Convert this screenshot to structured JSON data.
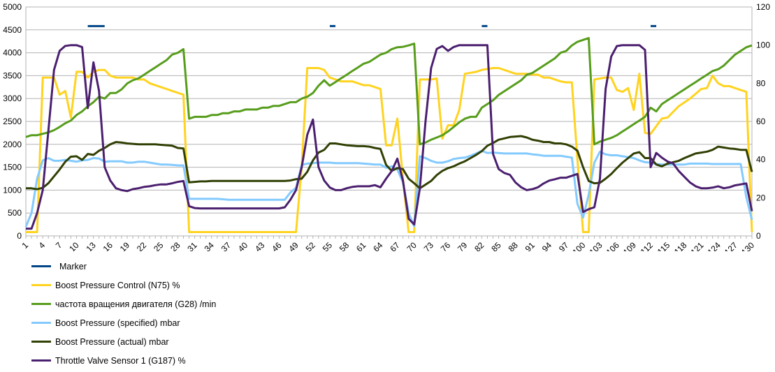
{
  "chart_data": {
    "type": "line",
    "title": "",
    "xlabel": "",
    "ylabel": "",
    "x": "1..130",
    "x_tick_labels_every": 3,
    "ylim_left": [
      0,
      5000
    ],
    "ylim_right": [
      0,
      120
    ],
    "yticks_left": [
      0,
      500,
      1000,
      1500,
      2000,
      2500,
      3000,
      3500,
      4000,
      4500,
      5000
    ],
    "yticks_right": [
      0,
      20,
      40,
      60,
      80,
      100,
      120
    ],
    "grid": "horizontal",
    "legend_placement": "bottom-left",
    "series": [
      {
        "name": "Marker",
        "axis": "right",
        "color": "#004586",
        "segments": [
          [
            12,
            15
          ],
          [
            55,
            56
          ],
          [
            82,
            83
          ],
          [
            112,
            113
          ]
        ],
        "value": 110
      },
      {
        "name": "Boost Pressure Control (N75)  %",
        "axis": "right",
        "color": "#ffd320",
        "values": [
          2,
          2,
          2,
          83,
          83,
          83,
          74,
          76,
          62,
          86,
          86,
          83,
          86,
          87,
          87,
          84,
          83,
          83,
          83,
          83,
          82,
          82,
          80,
          79,
          78,
          77,
          76,
          75,
          74,
          2,
          2,
          2,
          2,
          2,
          2,
          2,
          2,
          2,
          2,
          2,
          2,
          2,
          2,
          2,
          2,
          2,
          2,
          2,
          2,
          36,
          88,
          88,
          88,
          87,
          83,
          82,
          81,
          81,
          81,
          80,
          79,
          79,
          78,
          77,
          47.5,
          47.5,
          61.5,
          30,
          2,
          2,
          82,
          82,
          82,
          82.5,
          51,
          58,
          58,
          66,
          85,
          85.5,
          86,
          87,
          87.5,
          88,
          88,
          87,
          86,
          85,
          85,
          85,
          84.5,
          84.5,
          83,
          83,
          82,
          81,
          80.5,
          80.5,
          40,
          2,
          2,
          82,
          82.5,
          83,
          83,
          76.5,
          75.5,
          77.5,
          66,
          85,
          54,
          53.5,
          57.5,
          61.5,
          62,
          65,
          68,
          70,
          72,
          74.5,
          77,
          77.5,
          84,
          80,
          78.5,
          78.5,
          77.5,
          76.5,
          75.5,
          2
        ]
      },
      {
        "name": "частота вращения двигателя (G28)  /min",
        "axis": "left",
        "color": "#579d1c",
        "values": [
          2160,
          2200,
          2200,
          2230,
          2260,
          2310,
          2380,
          2460,
          2520,
          2640,
          2720,
          2830,
          2920,
          3040,
          3000,
          3120,
          3120,
          3200,
          3330,
          3400,
          3440,
          3520,
          3600,
          3680,
          3760,
          3840,
          3960,
          4000,
          4080,
          2560,
          2600,
          2600,
          2600,
          2640,
          2640,
          2680,
          2680,
          2720,
          2720,
          2760,
          2760,
          2760,
          2800,
          2800,
          2840,
          2840,
          2880,
          2920,
          2920,
          3000,
          3040,
          3120,
          3280,
          3400,
          3280,
          3360,
          3440,
          3520,
          3600,
          3680,
          3760,
          3800,
          3880,
          3960,
          4000,
          4080,
          4120,
          4130,
          4160,
          4200,
          2000,
          2040,
          2100,
          2150,
          2200,
          2280,
          2380,
          2480,
          2560,
          2600,
          2600,
          2800,
          2880,
          2960,
          3080,
          3160,
          3240,
          3320,
          3400,
          3520,
          3560,
          3640,
          3720,
          3800,
          3880,
          4000,
          4040,
          4160,
          4240,
          4280,
          4320,
          2000,
          2060,
          2100,
          2140,
          2200,
          2280,
          2360,
          2440,
          2520,
          2600,
          2800,
          2720,
          2880,
          2960,
          3040,
          3120,
          3200,
          3280,
          3360,
          3440,
          3520,
          3600,
          3640,
          3720,
          3840,
          3960,
          4040,
          4120,
          4160
        ]
      },
      {
        "name": "Boost Pressure (specified)  mbar",
        "axis": "left",
        "color": "#83caff",
        "values": [
          200,
          500,
          1250,
          1650,
          1700,
          1640,
          1640,
          1660,
          1640,
          1620,
          1650,
          1660,
          1700,
          1690,
          1620,
          1630,
          1630,
          1630,
          1600,
          1600,
          1620,
          1620,
          1600,
          1580,
          1560,
          1560,
          1550,
          1540,
          1540,
          810,
          810,
          810,
          810,
          810,
          810,
          800,
          790,
          790,
          790,
          790,
          790,
          790,
          790,
          790,
          790,
          790,
          790,
          950,
          1050,
          1550,
          1580,
          1590,
          1600,
          1600,
          1600,
          1590,
          1590,
          1590,
          1590,
          1590,
          1580,
          1570,
          1560,
          1560,
          1490,
          1520,
          1450,
          1170,
          500,
          210,
          1740,
          1700,
          1640,
          1600,
          1600,
          1630,
          1680,
          1700,
          1710,
          1750,
          1800,
          1860,
          1810,
          1820,
          1810,
          1800,
          1800,
          1800,
          1800,
          1800,
          1780,
          1770,
          1750,
          1750,
          1750,
          1750,
          1730,
          1710,
          700,
          400,
          900,
          1600,
          1840,
          1780,
          1760,
          1760,
          1740,
          1720,
          1700,
          1650,
          1610,
          1600,
          1570,
          1560,
          1560,
          1560,
          1560,
          1560,
          1580,
          1580,
          1580,
          1580,
          1570,
          1570,
          1570,
          1570,
          1570,
          1570,
          850,
          350
        ]
      },
      {
        "name": "Boost Pressure (actual)  mbar",
        "axis": "left",
        "color": "#314004",
        "values": [
          1040,
          1040,
          1020,
          1050,
          1150,
          1300,
          1450,
          1620,
          1730,
          1740,
          1660,
          1790,
          1770,
          1860,
          1920,
          2000,
          2050,
          2040,
          2020,
          2010,
          2000,
          2000,
          2000,
          2000,
          1990,
          1980,
          1970,
          1920,
          1910,
          1170,
          1180,
          1190,
          1190,
          1200,
          1200,
          1200,
          1200,
          1200,
          1200,
          1200,
          1200,
          1200,
          1200,
          1200,
          1200,
          1200,
          1200,
          1210,
          1240,
          1250,
          1400,
          1650,
          1820,
          1880,
          2020,
          2020,
          2000,
          1980,
          1970,
          1960,
          1960,
          1950,
          1920,
          1900,
          1550,
          1420,
          1480,
          1460,
          1250,
          1150,
          1040,
          1120,
          1200,
          1330,
          1420,
          1480,
          1520,
          1580,
          1630,
          1700,
          1770,
          1850,
          1970,
          2030,
          2100,
          2130,
          2160,
          2170,
          2180,
          2150,
          2100,
          2080,
          2050,
          2050,
          2020,
          2020,
          2000,
          1950,
          1860,
          1500,
          1200,
          1150,
          1160,
          1250,
          1350,
          1480,
          1600,
          1700,
          1800,
          1830,
          1700,
          1700,
          1560,
          1520,
          1580,
          1610,
          1640,
          1700,
          1750,
          1800,
          1820,
          1840,
          1880,
          1950,
          1930,
          1910,
          1900,
          1880,
          1880,
          1400
        ]
      },
      {
        "name": "Throttle Valve Sensor 1 (G187)  %",
        "axis": "right",
        "color": "#4b1f6f",
        "values": [
          3.8,
          3.8,
          12,
          24,
          55,
          87,
          97,
          99.6,
          100,
          100,
          99,
          67,
          91,
          76,
          36,
          29,
          25,
          24,
          23.5,
          24.5,
          25,
          25.7,
          26,
          26.6,
          27,
          27,
          27.6,
          28.3,
          28.8,
          15.6,
          14.6,
          14.4,
          14.4,
          14.4,
          14.4,
          14.4,
          14.4,
          14.4,
          14.4,
          14.4,
          14.4,
          14.4,
          14.4,
          14.4,
          14.4,
          14.4,
          15,
          19,
          24,
          36,
          53,
          61,
          36,
          29,
          25.4,
          24,
          24,
          25,
          25.7,
          26,
          26,
          26,
          26.6,
          25.5,
          30,
          34,
          40.5,
          29,
          9,
          6,
          25,
          60,
          88,
          98,
          99.5,
          97,
          99,
          100,
          100,
          100,
          100,
          100,
          100,
          43,
          35,
          33,
          32,
          28,
          25.5,
          24,
          24.5,
          25.5,
          27.5,
          29,
          29.7,
          30.5,
          30.5,
          31.5,
          32.5,
          12.5,
          14,
          15,
          30,
          77,
          94,
          99.5,
          100,
          100,
          100,
          100,
          97.5,
          36,
          43.5,
          41,
          39,
          38,
          34,
          31,
          28,
          26,
          25,
          25,
          25.3,
          26,
          25,
          25.5,
          26.5,
          27,
          27.5,
          13
        ]
      }
    ]
  }
}
